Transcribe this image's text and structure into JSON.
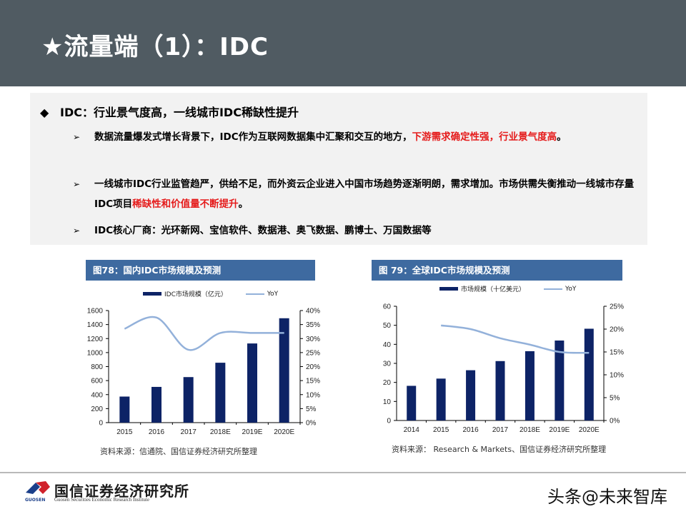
{
  "header": {
    "title": "★流量端（1）：IDC"
  },
  "summary": {
    "main_bullet": {
      "icon": "diamond-bullet",
      "text": "IDC：行业景气度高，一线城市IDC稀缺性提升"
    },
    "points": [
      {
        "icon": "arrow-bullet",
        "text_plain": "数据流量爆发式增长背景下，IDC作为互联网数据集中汇聚和交互的地方，",
        "text_highlight": "下游需求确定性强，行业景气度高",
        "text_end": "。"
      },
      {
        "icon": "arrow-bullet",
        "text_plain": "一线城市IDC行业监管趋严，供给不足，而外资云企业进入中国市场趋势逐渐明朗，需求增加。市场供需失衡推动一线城市存量IDC项目",
        "text_highlight": "稀缺性和价值量不断提升",
        "text_end": "。"
      },
      {
        "icon": "arrow-bullet",
        "text_plain": "IDC核心厂商：光环新网、宝信软件、数据港、奥飞数据、鹏博士、万国数据等",
        "text_highlight": "",
        "text_end": ""
      }
    ]
  },
  "colors": {
    "header_bg": "#505b62",
    "title_bar": "#3e6aa0",
    "bar": "#0d2366",
    "line": "#93b1da",
    "highlight": "#e51b1b",
    "summary_bg": "#f2f2f2"
  },
  "chart_data": [
    {
      "type": "bar",
      "title": "图78：国内IDC市场规模及预测",
      "categories": [
        "2015",
        "2016",
        "2017",
        "2018E",
        "2019E",
        "2020E"
      ],
      "series": [
        {
          "name": "IDC市场规模（亿元）",
          "type": "bar",
          "axis": "left",
          "values": [
            372,
            510,
            650,
            855,
            1130,
            1490
          ]
        },
        {
          "name": "YoY",
          "type": "line",
          "axis": "right",
          "values": [
            33.5,
            37.5,
            26.0,
            32.0,
            32.0,
            32.0
          ]
        }
      ],
      "y_left": {
        "min": 0,
        "max": 1600,
        "ticks": [
          "0",
          "200",
          "400",
          "600",
          "800",
          "1000",
          "1200",
          "1400",
          "1600"
        ]
      },
      "y_right": {
        "min": 0,
        "max": 40,
        "ticks": [
          "0%",
          "5%",
          "10%",
          "15%",
          "20%",
          "25%",
          "30%",
          "35%",
          "40%"
        ]
      },
      "legend_position": "top",
      "grid": false,
      "source": "资料来源：信通院、国信证券经济研究所整理"
    },
    {
      "type": "bar",
      "title": "图 79：全球IDC市场规模及预测",
      "categories": [
        "2014",
        "2015",
        "2016",
        "2017",
        "2018E",
        "2019E",
        "2020E"
      ],
      "series": [
        {
          "name": "市场规模（十亿美元）",
          "type": "bar",
          "axis": "left",
          "values": [
            18.2,
            22.0,
            26.4,
            31.2,
            36.4,
            42.0,
            48.2
          ]
        },
        {
          "name": "YoY",
          "type": "line",
          "axis": "right",
          "values": [
            null,
            20.8,
            20.0,
            18.0,
            16.6,
            15.0,
            14.8
          ]
        }
      ],
      "y_left": {
        "min": 0,
        "max": 60,
        "ticks": [
          "0",
          "10",
          "20",
          "30",
          "40",
          "50",
          "60"
        ]
      },
      "y_right": {
        "min": 0,
        "max": 25,
        "ticks": [
          "0%",
          "5%",
          "10%",
          "15%",
          "20%",
          "25%"
        ]
      },
      "legend_position": "top",
      "grid": false,
      "source": "资料来源： Research & Markets、国信证券经济研究所整理"
    }
  ],
  "footer": {
    "logo_cn": "国信证券经济研究所",
    "logo_en": "Guosen Securities Economic Research Institute",
    "logo_sub": "GUOSEN",
    "watermark": "头条@未来智库"
  }
}
